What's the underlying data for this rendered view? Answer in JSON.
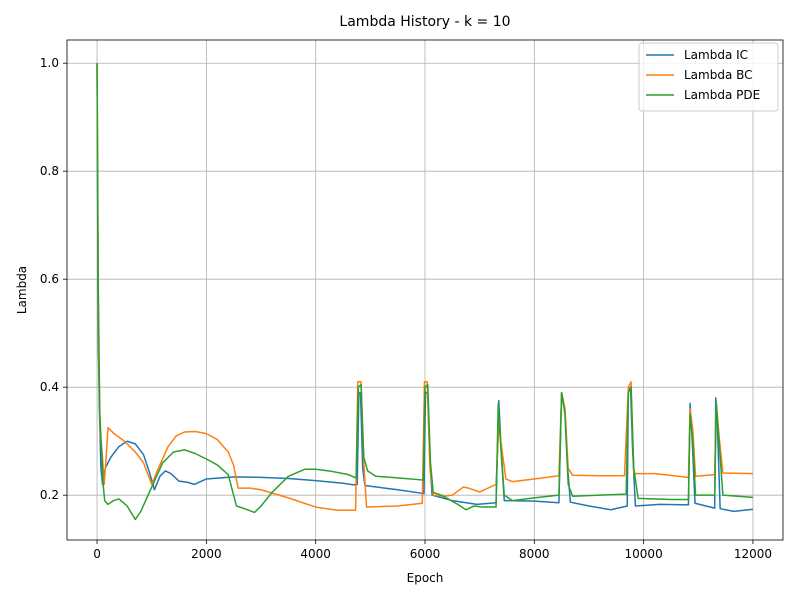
{
  "chart_data": {
    "type": "line",
    "title": "Lambda History - k = 10",
    "xlabel": "Epoch",
    "ylabel": "Lambda",
    "xlim": [
      -550,
      12550
    ],
    "ylim": [
      0.117,
      1.043
    ],
    "xticks": [
      0,
      2000,
      4000,
      6000,
      8000,
      10000,
      12000
    ],
    "xtick_labels": [
      "0",
      "2000",
      "4000",
      "6000",
      "8000",
      "10000",
      "12000"
    ],
    "yticks": [
      0.2,
      0.4,
      0.6,
      0.8,
      1.0
    ],
    "ytick_labels": [
      "0.2",
      "0.4",
      "0.6",
      "0.8",
      "1.0"
    ],
    "grid": true,
    "legend_position": "top-right",
    "series": [
      {
        "name": "Lambda IC",
        "color": "#1f77b4",
        "points": [
          [
            0,
            1.0
          ],
          [
            20,
            0.5
          ],
          [
            40,
            0.37
          ],
          [
            70,
            0.25
          ],
          [
            100,
            0.22
          ],
          [
            150,
            0.25
          ],
          [
            250,
            0.27
          ],
          [
            400,
            0.29
          ],
          [
            550,
            0.3
          ],
          [
            700,
            0.295
          ],
          [
            850,
            0.275
          ],
          [
            950,
            0.245
          ],
          [
            1050,
            0.21
          ],
          [
            1150,
            0.235
          ],
          [
            1250,
            0.245
          ],
          [
            1350,
            0.24
          ],
          [
            1500,
            0.226
          ],
          [
            1650,
            0.224
          ],
          [
            1780,
            0.22
          ],
          [
            2000,
            0.23
          ],
          [
            2500,
            0.234
          ],
          [
            3000,
            0.233
          ],
          [
            3500,
            0.231
          ],
          [
            4000,
            0.227
          ],
          [
            4500,
            0.222
          ],
          [
            4700,
            0.219
          ],
          [
            4760,
            0.22
          ],
          [
            4790,
            0.39
          ],
          [
            4820,
            0.39
          ],
          [
            4860,
            0.25
          ],
          [
            4900,
            0.218
          ],
          [
            5500,
            0.21
          ],
          [
            5980,
            0.203
          ],
          [
            6010,
            0.39
          ],
          [
            6050,
            0.39
          ],
          [
            6090,
            0.26
          ],
          [
            6130,
            0.2
          ],
          [
            6500,
            0.19
          ],
          [
            6950,
            0.183
          ],
          [
            7300,
            0.186
          ],
          [
            7350,
            0.375
          ],
          [
            7400,
            0.27
          ],
          [
            7450,
            0.19
          ],
          [
            8000,
            0.189
          ],
          [
            8450,
            0.186
          ],
          [
            8500,
            0.39
          ],
          [
            8560,
            0.36
          ],
          [
            8610,
            0.25
          ],
          [
            8660,
            0.187
          ],
          [
            9000,
            0.18
          ],
          [
            9400,
            0.173
          ],
          [
            9700,
            0.18
          ],
          [
            9720,
            0.39
          ],
          [
            9760,
            0.4
          ],
          [
            9800,
            0.28
          ],
          [
            9850,
            0.18
          ],
          [
            10300,
            0.183
          ],
          [
            10820,
            0.182
          ],
          [
            10850,
            0.37
          ],
          [
            10890,
            0.3
          ],
          [
            10940,
            0.185
          ],
          [
            11300,
            0.176
          ],
          [
            11320,
            0.38
          ],
          [
            11350,
            0.33
          ],
          [
            11400,
            0.175
          ],
          [
            11650,
            0.17
          ],
          [
            12000,
            0.174
          ]
        ]
      },
      {
        "name": "Lambda BC",
        "color": "#ff7f0e",
        "points": [
          [
            0,
            1.0
          ],
          [
            30,
            0.45
          ],
          [
            60,
            0.31
          ],
          [
            100,
            0.27
          ],
          [
            130,
            0.22
          ],
          [
            160,
            0.26
          ],
          [
            200,
            0.325
          ],
          [
            300,
            0.315
          ],
          [
            500,
            0.3
          ],
          [
            700,
            0.28
          ],
          [
            850,
            0.26
          ],
          [
            1000,
            0.22
          ],
          [
            1100,
            0.245
          ],
          [
            1300,
            0.29
          ],
          [
            1450,
            0.31
          ],
          [
            1600,
            0.317
          ],
          [
            1800,
            0.318
          ],
          [
            2000,
            0.314
          ],
          [
            2200,
            0.303
          ],
          [
            2400,
            0.28
          ],
          [
            2500,
            0.255
          ],
          [
            2580,
            0.213
          ],
          [
            2800,
            0.213
          ],
          [
            3000,
            0.21
          ],
          [
            3500,
            0.195
          ],
          [
            4000,
            0.178
          ],
          [
            4400,
            0.172
          ],
          [
            4730,
            0.172
          ],
          [
            4770,
            0.41
          ],
          [
            4830,
            0.41
          ],
          [
            4880,
            0.26
          ],
          [
            4930,
            0.178
          ],
          [
            5500,
            0.18
          ],
          [
            5950,
            0.185
          ],
          [
            5990,
            0.41
          ],
          [
            6040,
            0.41
          ],
          [
            6090,
            0.25
          ],
          [
            6150,
            0.2
          ],
          [
            6350,
            0.198
          ],
          [
            6500,
            0.2
          ],
          [
            6700,
            0.215
          ],
          [
            6800,
            0.213
          ],
          [
            7000,
            0.206
          ],
          [
            7300,
            0.22
          ],
          [
            7350,
            0.33
          ],
          [
            7400,
            0.29
          ],
          [
            7480,
            0.23
          ],
          [
            7600,
            0.225
          ],
          [
            8000,
            0.23
          ],
          [
            8450,
            0.236
          ],
          [
            8500,
            0.39
          ],
          [
            8560,
            0.36
          ],
          [
            8620,
            0.25
          ],
          [
            8700,
            0.237
          ],
          [
            9200,
            0.236
          ],
          [
            9650,
            0.236
          ],
          [
            9720,
            0.4
          ],
          [
            9770,
            0.41
          ],
          [
            9820,
            0.24
          ],
          [
            10200,
            0.24
          ],
          [
            10820,
            0.233
          ],
          [
            10850,
            0.36
          ],
          [
            10900,
            0.32
          ],
          [
            10950,
            0.235
          ],
          [
            11300,
            0.238
          ],
          [
            11330,
            0.37
          ],
          [
            11380,
            0.31
          ],
          [
            11450,
            0.241
          ],
          [
            12000,
            0.24
          ]
        ]
      },
      {
        "name": "Lambda PDE",
        "color": "#2ca02c",
        "points": [
          [
            0,
            1.0
          ],
          [
            20,
            0.6
          ],
          [
            50,
            0.35
          ],
          [
            90,
            0.27
          ],
          [
            110,
            0.22
          ],
          [
            140,
            0.19
          ],
          [
            200,
            0.183
          ],
          [
            300,
            0.19
          ],
          [
            400,
            0.193
          ],
          [
            550,
            0.18
          ],
          [
            700,
            0.155
          ],
          [
            800,
            0.17
          ],
          [
            1000,
            0.215
          ],
          [
            1200,
            0.26
          ],
          [
            1400,
            0.28
          ],
          [
            1600,
            0.284
          ],
          [
            1800,
            0.277
          ],
          [
            2000,
            0.267
          ],
          [
            2200,
            0.256
          ],
          [
            2400,
            0.238
          ],
          [
            2550,
            0.18
          ],
          [
            2700,
            0.175
          ],
          [
            2880,
            0.168
          ],
          [
            3000,
            0.18
          ],
          [
            3200,
            0.205
          ],
          [
            3500,
            0.235
          ],
          [
            3800,
            0.248
          ],
          [
            4000,
            0.248
          ],
          [
            4300,
            0.244
          ],
          [
            4600,
            0.238
          ],
          [
            4740,
            0.232
          ],
          [
            4780,
            0.4
          ],
          [
            4830,
            0.405
          ],
          [
            4880,
            0.27
          ],
          [
            4950,
            0.245
          ],
          [
            5100,
            0.235
          ],
          [
            5500,
            0.232
          ],
          [
            5970,
            0.228
          ],
          [
            6000,
            0.4
          ],
          [
            6050,
            0.405
          ],
          [
            6100,
            0.26
          ],
          [
            6150,
            0.205
          ],
          [
            6300,
            0.2
          ],
          [
            6600,
            0.183
          ],
          [
            6750,
            0.173
          ],
          [
            6900,
            0.18
          ],
          [
            7050,
            0.178
          ],
          [
            7300,
            0.178
          ],
          [
            7340,
            0.37
          ],
          [
            7380,
            0.3
          ],
          [
            7450,
            0.2
          ],
          [
            7600,
            0.19
          ],
          [
            8000,
            0.195
          ],
          [
            8450,
            0.2
          ],
          [
            8500,
            0.39
          ],
          [
            8560,
            0.35
          ],
          [
            8620,
            0.22
          ],
          [
            8700,
            0.198
          ],
          [
            9200,
            0.2
          ],
          [
            9680,
            0.202
          ],
          [
            9720,
            0.39
          ],
          [
            9770,
            0.4
          ],
          [
            9820,
            0.25
          ],
          [
            9900,
            0.194
          ],
          [
            10500,
            0.192
          ],
          [
            10820,
            0.192
          ],
          [
            10850,
            0.35
          ],
          [
            10900,
            0.3
          ],
          [
            10950,
            0.2
          ],
          [
            11300,
            0.2
          ],
          [
            11330,
            0.37
          ],
          [
            11380,
            0.3
          ],
          [
            11450,
            0.2
          ],
          [
            12000,
            0.196
          ]
        ]
      }
    ]
  }
}
